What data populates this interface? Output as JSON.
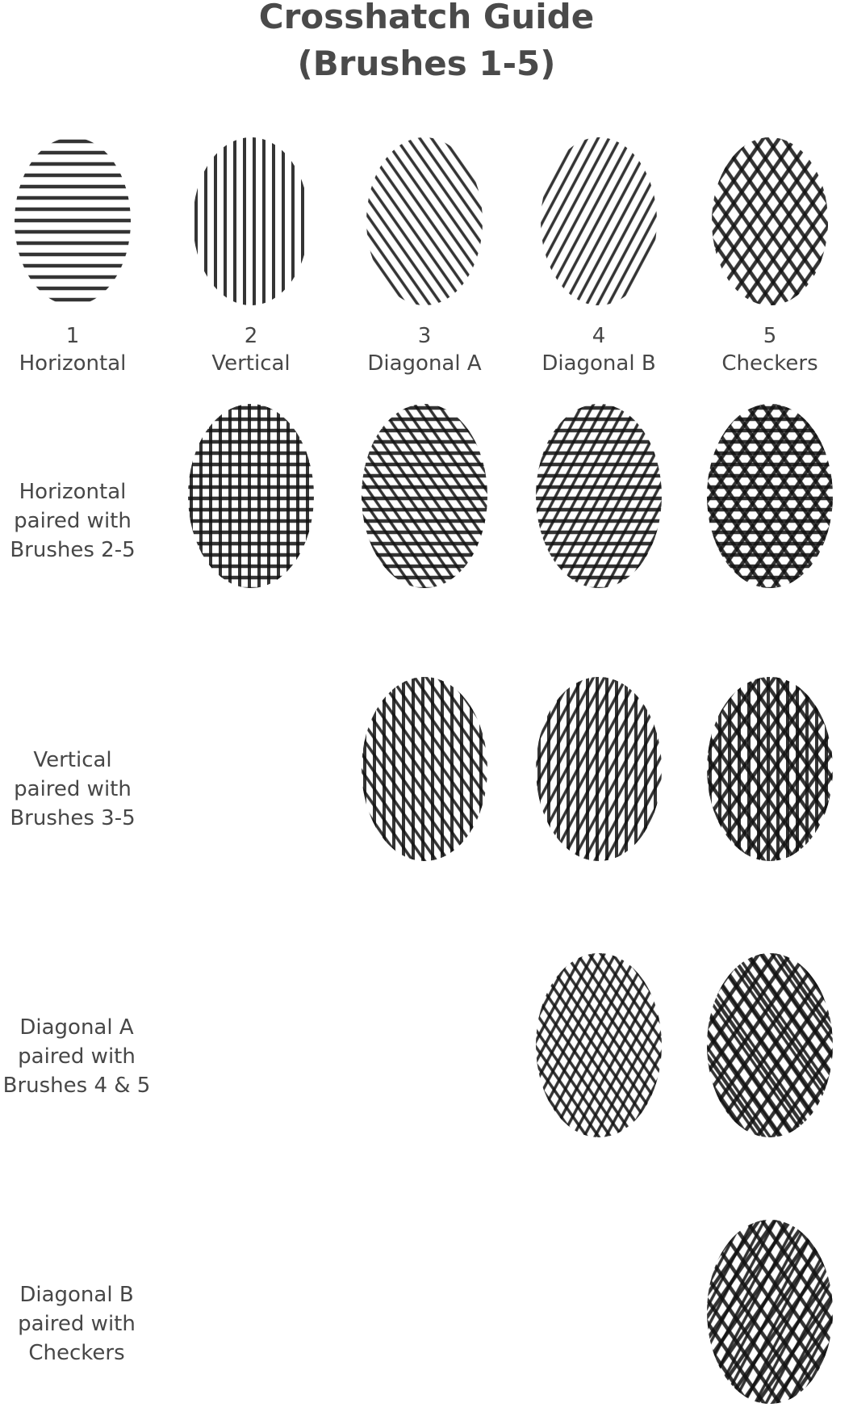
{
  "title": {
    "line1": "Crosshatch Guide",
    "line2": "(Brushes 1-5)"
  },
  "ink_color": "#111111",
  "text_color": "#474747",
  "brushes": [
    {
      "number": "1",
      "name": "Horizontal",
      "pattern": "horizontal"
    },
    {
      "number": "2",
      "name": "Vertical",
      "pattern": "vertical"
    },
    {
      "number": "3",
      "name": "Diagonal A",
      "pattern": "diagonal-a"
    },
    {
      "number": "4",
      "name": "Diagonal B",
      "pattern": "diagonal-b"
    },
    {
      "number": "5",
      "name": "Checkers",
      "pattern": "checkers"
    }
  ],
  "pairings": [
    {
      "lines": [
        "Horizontal",
        "paired with",
        "Brushes 2-5"
      ],
      "base": "horizontal",
      "partners": [
        "vertical",
        "diagonal-a",
        "diagonal-b",
        "checkers"
      ]
    },
    {
      "lines": [
        "Vertical",
        "paired with",
        "Brushes 3-5"
      ],
      "base": "vertical",
      "partners": [
        "diagonal-a",
        "diagonal-b",
        "checkers"
      ]
    },
    {
      "lines": [
        "Diagonal A",
        "paired with",
        "Brushes 4 & 5"
      ],
      "base": "diagonal-a",
      "partners": [
        "diagonal-b",
        "checkers"
      ]
    },
    {
      "lines": [
        "Diagonal B",
        "paired with",
        "Checkers"
      ],
      "base": "diagonal-b",
      "partners": [
        "checkers"
      ]
    }
  ]
}
